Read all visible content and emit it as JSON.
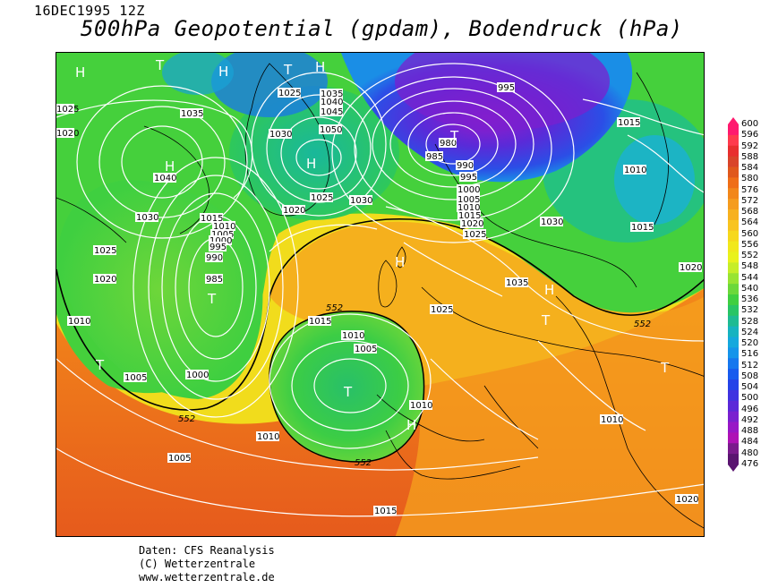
{
  "header": {
    "datetime": "16DEC1995 12Z",
    "title": "500hPa Geopotential (gpdam), Bodendruck (hPa)"
  },
  "footer": {
    "line1": "Daten: CFS Reanalysis",
    "line2": "(C) Wetterzentrale",
    "line3": "www.wetterzentrale.de"
  },
  "colorbar": {
    "labels": [
      "600",
      "596",
      "592",
      "588",
      "584",
      "580",
      "576",
      "572",
      "568",
      "564",
      "560",
      "556",
      "552",
      "548",
      "544",
      "540",
      "536",
      "532",
      "528",
      "524",
      "520",
      "516",
      "512",
      "508",
      "504",
      "500",
      "496",
      "492",
      "488",
      "484",
      "480",
      "476"
    ],
    "colors": [
      "#ff1a6e",
      "#ff3a4d",
      "#e82f2f",
      "#d9442a",
      "#e0581c",
      "#ef6e17",
      "#f2871a",
      "#f59c1e",
      "#f7b11f",
      "#f8c41f",
      "#f6d81c",
      "#f1e81c",
      "#e9f21c",
      "#c6ee28",
      "#98e432",
      "#6bd83a",
      "#3fcf40",
      "#28c565",
      "#1ebb93",
      "#17b3c0",
      "#15a8dd",
      "#1594ea",
      "#1677ee",
      "#185bee",
      "#2443e8",
      "#3f33e0",
      "#5b28d8",
      "#7a20cf",
      "#9817c6",
      "#ae12b5",
      "#7a1a8c",
      "#5a1470"
    ]
  },
  "map": {
    "pressure_systems": [
      {
        "letter": "H",
        "label": "1040"
      },
      {
        "letter": "H",
        "label": ""
      },
      {
        "letter": "H",
        "label": ""
      },
      {
        "letter": "T",
        "label": ""
      },
      {
        "letter": "T",
        "label": ""
      },
      {
        "letter": "H",
        "label": "1050"
      },
      {
        "letter": "H",
        "label": ""
      },
      {
        "letter": "T",
        "label": "980"
      },
      {
        "letter": "T",
        "label": ""
      },
      {
        "letter": "H",
        "label": ""
      },
      {
        "letter": "T",
        "label": ""
      },
      {
        "letter": "H",
        "label": ""
      },
      {
        "letter": "T",
        "label": ""
      },
      {
        "letter": "H",
        "label": ""
      },
      {
        "letter": "T",
        "label": ""
      },
      {
        "letter": "T",
        "label": ""
      }
    ],
    "isobar_labels": [
      "1030",
      "1025",
      "1020",
      "1035",
      "1040",
      "1025",
      "1020",
      "1015",
      "1010",
      "1005",
      "1000",
      "995",
      "990",
      "985",
      "1010",
      "1005",
      "1000",
      "1030",
      "1025",
      "1020",
      "1015",
      "1010",
      "1005",
      "1000",
      "995",
      "990",
      "985",
      "980",
      "995",
      "1015",
      "1010",
      "1030",
      "1020",
      "1030",
      "1025",
      "1035",
      "1035",
      "1040",
      "1045",
      "1050",
      "1015",
      "1010",
      "1005",
      "1010",
      "1015",
      "1025",
      "1020",
      "1015",
      "1010",
      "1020",
      "1010",
      "1005",
      "1025"
    ],
    "isohypse_labels": [
      "552",
      "552",
      "552",
      "552"
    ]
  }
}
